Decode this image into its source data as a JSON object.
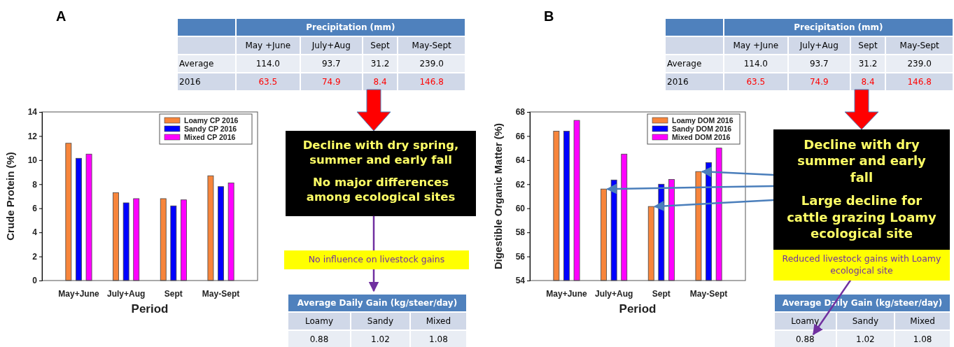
{
  "chart_data": [
    {
      "type": "bar",
      "xlabel": "Period",
      "ylabel": "Crude Protein (%)",
      "categories": [
        "May+June",
        "July+Aug",
        "Sept",
        "May-Sept"
      ],
      "series": [
        {
          "name": "Loamy CP 2016",
          "color": "#f7853b",
          "values": [
            11.4,
            7.3,
            6.8,
            8.7
          ]
        },
        {
          "name": "Sandy CP 2016",
          "color": "#0000ff",
          "values": [
            10.15,
            6.45,
            6.2,
            7.8
          ]
        },
        {
          "name": "Mixed CP 2016",
          "color": "#ff00ff",
          "values": [
            10.5,
            6.8,
            6.7,
            8.1
          ]
        }
      ],
      "ylim": [
        0,
        14
      ],
      "yticks": [
        0,
        2,
        4,
        6,
        8,
        10,
        12,
        14
      ],
      "legend": "top right",
      "grid": false,
      "annotations": [
        "A",
        "Precipitation (mm)",
        "May +June",
        "July+Aug",
        "Sept",
        "May-Sept",
        "Average",
        "114.0",
        "93.7",
        "31.2",
        "239.0",
        "2016",
        "63.5",
        "74.9",
        "8.4",
        "146.8",
        "Decline with dry spring, summer and early fall",
        "No major differences among ecological sites",
        "No influence on livestock gains",
        "Average Daily Gain (kg/steer/day)",
        "Loamy",
        "Sandy",
        "Mixed",
        "0.88",
        "1.02",
        "1.08"
      ]
    },
    {
      "type": "bar",
      "xlabel": "Period",
      "ylabel": "Digestible Organic Matter (%)",
      "categories": [
        "May+June",
        "July+Aug",
        "Sept",
        "May-Sept"
      ],
      "series": [
        {
          "name": "Loamy DOM 2016",
          "color": "#f7853b",
          "values": [
            66.4,
            61.6,
            60.15,
            63.05
          ]
        },
        {
          "name": "Sandy DOM 2016",
          "color": "#0000ff",
          "values": [
            66.4,
            62.35,
            62.0,
            63.8
          ]
        },
        {
          "name": "Mixed DOM 2016",
          "color": "#ff00ff",
          "values": [
            67.3,
            64.5,
            62.4,
            65.0
          ]
        }
      ],
      "ylim": [
        54,
        68
      ],
      "yticks": [
        54,
        56,
        58,
        60,
        62,
        64,
        66,
        68
      ],
      "legend": "top right",
      "grid": false,
      "annotations": [
        "B",
        "Precipitation (mm)",
        "May +June",
        "July+Aug",
        "Sept",
        "May-Sept",
        "Average",
        "114.0",
        "93.7",
        "31.2",
        "239.0",
        "2016",
        "63.5",
        "74.9",
        "8.4",
        "146.8",
        "Decline with dry summer and early fall",
        "Large decline for cattle grazing Loamy ecological site",
        "Reduced livestock gains with Loamy ecological site",
        "Average Daily Gain (kg/steer/day)",
        "Loamy",
        "Sandy",
        "Mixed",
        "0.88",
        "1.02",
        "1.08"
      ]
    }
  ]
}
